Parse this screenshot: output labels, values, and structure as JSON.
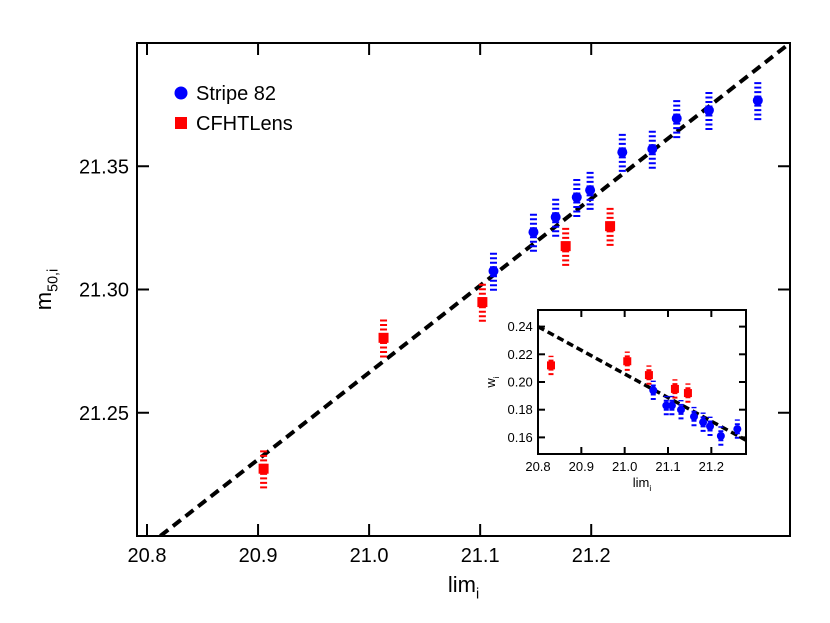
{
  "chart_data": [
    {
      "type": "scatter",
      "xlabel": "lim",
      "xlabel_sub": "i",
      "ylabel": "m",
      "ylabel_sub": "50,i",
      "xlim": [
        20.791,
        21.379
      ],
      "ylim": [
        21.2,
        21.4
      ],
      "xticks": [
        20.8,
        20.9,
        {
          "value": 21,
          "label": "21.0"
        },
        21.1,
        21.2
      ],
      "yticks": [
        21.25,
        {
          "value": 21.3,
          "label": "21.30"
        },
        21.35
      ],
      "legend": "upper left",
      "series": [
        {
          "name": "Stripe 82",
          "color": "#0000ff",
          "marker": "circle",
          "x": [
            21.112,
            21.148,
            21.168,
            21.187,
            21.199,
            21.228,
            21.255,
            21.277,
            21.306,
            21.35
          ],
          "values": [
            21.3075,
            21.3233,
            21.3294,
            21.3374,
            21.3403,
            21.3557,
            21.357,
            21.3694,
            21.3727,
            21.3767
          ],
          "errors": [
            0.008,
            0.008,
            0.008,
            0.008,
            0.008,
            0.008,
            0.008,
            0.008,
            0.008,
            0.008
          ]
        },
        {
          "name": "CFHTLens",
          "color": "#ff0000",
          "marker": "square",
          "x": [
            20.905,
            21.013,
            21.102,
            21.177,
            21.217
          ],
          "values": [
            21.2273,
            21.2804,
            21.2949,
            21.3176,
            21.3257
          ],
          "errors": [
            0.008,
            0.008,
            0.008,
            0.008,
            0.008
          ]
        }
      ],
      "fit": {
        "x": [
          20.812,
          21.379
        ],
        "y": [
          21.2,
          21.4
        ]
      }
    },
    {
      "type": "scatter",
      "xlabel": "lim",
      "xlabel_sub": "i",
      "ylabel": "w",
      "ylabel_sub": "i",
      "xlim": [
        20.8,
        21.28
      ],
      "ylim": [
        0.148,
        0.252
      ],
      "xticks": [
        20.8,
        20.9,
        {
          "value": 21,
          "label": "21.0"
        },
        21.1,
        21.2
      ],
      "yticks": [
        0.16,
        0.18,
        {
          "value": 0.2,
          "label": "0.20"
        },
        0.22,
        0.24
      ],
      "series": [
        {
          "color": "#0000ff",
          "marker": "circle",
          "x": [
            21.066,
            21.096,
            21.109,
            21.13,
            21.16,
            21.181,
            21.197,
            21.222,
            21.26
          ],
          "values": [
            0.194,
            0.183,
            0.183,
            0.18,
            0.175,
            0.171,
            0.168,
            0.161,
            0.166
          ],
          "errors": [
            0.007,
            0.007,
            0.007,
            0.007,
            0.007,
            0.007,
            0.007,
            0.007,
            0.007
          ]
        },
        {
          "color": "#ff0000",
          "marker": "square",
          "x": [
            20.83,
            21.006,
            21.056,
            21.116,
            21.146
          ],
          "values": [
            0.212,
            0.215,
            0.205,
            0.195,
            0.192
          ],
          "errors": [
            0.007,
            0.007,
            0.007,
            0.007,
            0.007
          ]
        }
      ],
      "fit": {
        "x": [
          20.8,
          21.28
        ],
        "y": [
          0.24,
          0.158
        ]
      }
    }
  ]
}
